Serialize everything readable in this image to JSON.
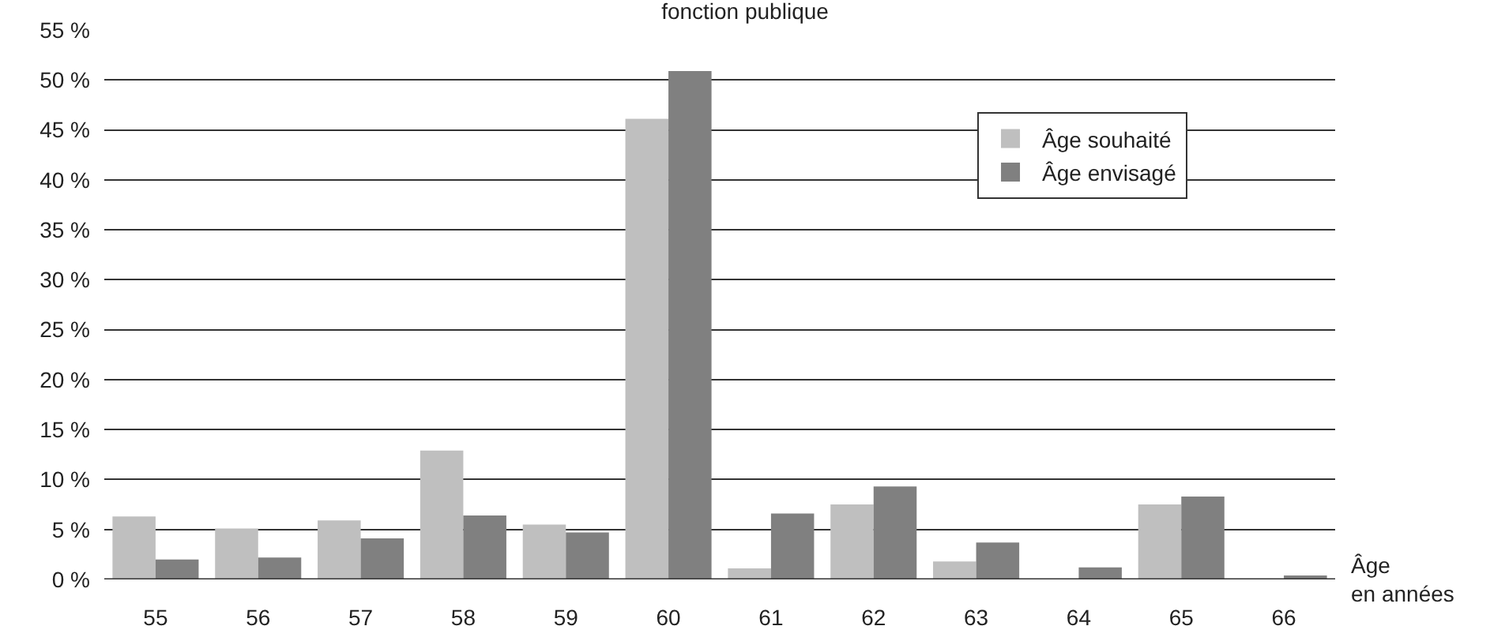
{
  "chart_data": {
    "type": "bar",
    "title": "fonction publique",
    "xlabel": "Âge\nen années",
    "categories": [
      "55",
      "56",
      "57",
      "58",
      "59",
      "60",
      "61",
      "62",
      "63",
      "64",
      "65",
      "66"
    ],
    "series": [
      {
        "name": "Âge souhaité",
        "color": "#bfbfbf",
        "values": [
          6.3,
          5.1,
          5.9,
          12.9,
          5.5,
          46.1,
          1.1,
          7.5,
          1.8,
          0,
          7.5,
          0
        ]
      },
      {
        "name": "Âge envisagé",
        "color": "#808080",
        "values": [
          2.0,
          2.2,
          4.1,
          6.4,
          4.7,
          50.9,
          6.6,
          9.3,
          3.7,
          1.2,
          8.3,
          0.4
        ]
      }
    ],
    "ylim": [
      0,
      55
    ],
    "yticks": [
      {
        "value": 0,
        "label": "0 %"
      },
      {
        "value": 5,
        "label": "5 %"
      },
      {
        "value": 10,
        "label": "10 %"
      },
      {
        "value": 15,
        "label": "15 %"
      },
      {
        "value": 20,
        "label": "20 %"
      },
      {
        "value": 25,
        "label": "25 %"
      },
      {
        "value": 30,
        "label": "30 %"
      },
      {
        "value": 35,
        "label": "35 %"
      },
      {
        "value": 40,
        "label": "40 %"
      },
      {
        "value": 45,
        "label": "45 %"
      },
      {
        "value": 50,
        "label": "50 %"
      },
      {
        "value": 55,
        "label": "55 %"
      }
    ],
    "grid": "y",
    "legend": "top right"
  }
}
